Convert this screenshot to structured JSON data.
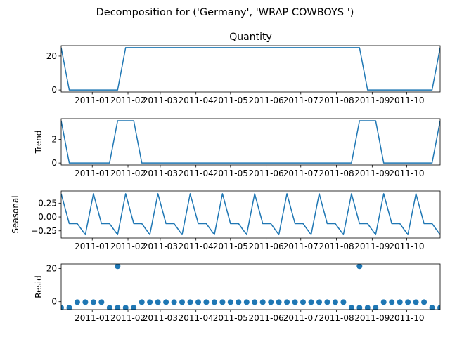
{
  "suptitle": "Decomposition for ('Germany', 'WRAP COWBOYS  ')",
  "series_color": "#1f77b4",
  "x_tick_labels": [
    "2011-01",
    "2011-02",
    "2011-03",
    "2011-04",
    "2011-05",
    "2011-06",
    "2011-07",
    "2011-08",
    "2011-09",
    "2011-10"
  ],
  "chart_data": [
    {
      "type": "line",
      "title": "Quantity",
      "ylabel": "",
      "xlim": [
        "2010-12-05",
        "2011-10-30"
      ],
      "ylim": [
        -1.2,
        26.2
      ],
      "yticks": [
        0,
        20
      ],
      "x": [
        "2010-12-05",
        "2010-12-12",
        "2011-01-23",
        "2011-01-30",
        "2011-08-21",
        "2011-08-28",
        "2011-10-23",
        "2011-10-30"
      ],
      "y": [
        25,
        0,
        0,
        25,
        25,
        0,
        0,
        25
      ]
    },
    {
      "type": "line",
      "title": "",
      "ylabel": "Trend",
      "xlim": [
        "2010-12-05",
        "2011-10-30"
      ],
      "ylim": [
        -0.17,
        3.75
      ],
      "yticks": [
        0,
        2
      ],
      "x": [
        "2010-12-05",
        "2010-12-12",
        "2011-01-16",
        "2011-01-23",
        "2011-02-06",
        "2011-02-13",
        "2011-08-14",
        "2011-08-21",
        "2011-09-04",
        "2011-09-11",
        "2011-10-23",
        "2011-10-30"
      ],
      "y": [
        3.57,
        0,
        0,
        3.57,
        3.57,
        0,
        0,
        3.57,
        3.57,
        0,
        0,
        3.57
      ]
    },
    {
      "type": "line",
      "title": "",
      "ylabel": "Seasonal",
      "xlim": [
        "2010-12-05",
        "2011-10-30"
      ],
      "ylim": [
        -0.38,
        0.47
      ],
      "yticks": [
        -0.25,
        0,
        0.25
      ],
      "ytick_labels": [
        "−0.25",
        "0.00",
        "0.25"
      ],
      "period_weeks": 4,
      "pattern": [
        0.42,
        -0.12,
        -0.12,
        -0.32
      ]
    },
    {
      "type": "scatter",
      "title": "",
      "ylabel": "Resid",
      "xlim": [
        "2010-12-05",
        "2011-10-30"
      ],
      "ylim": [
        -4.8,
        22.8
      ],
      "yticks": [
        0,
        20
      ],
      "baseline": -0.3,
      "low_value": -3.6,
      "low_dates": [
        "2010-12-05",
        "2010-12-12",
        "2011-01-16",
        "2011-01-23",
        "2011-01-30",
        "2011-02-06",
        "2011-08-14",
        "2011-08-21",
        "2011-08-28",
        "2011-09-04",
        "2011-10-23",
        "2011-10-30"
      ],
      "outliers": [
        {
          "x": "2011-01-23",
          "y": 21.4
        },
        {
          "x": "2011-08-21",
          "y": 21.4
        }
      ]
    }
  ]
}
